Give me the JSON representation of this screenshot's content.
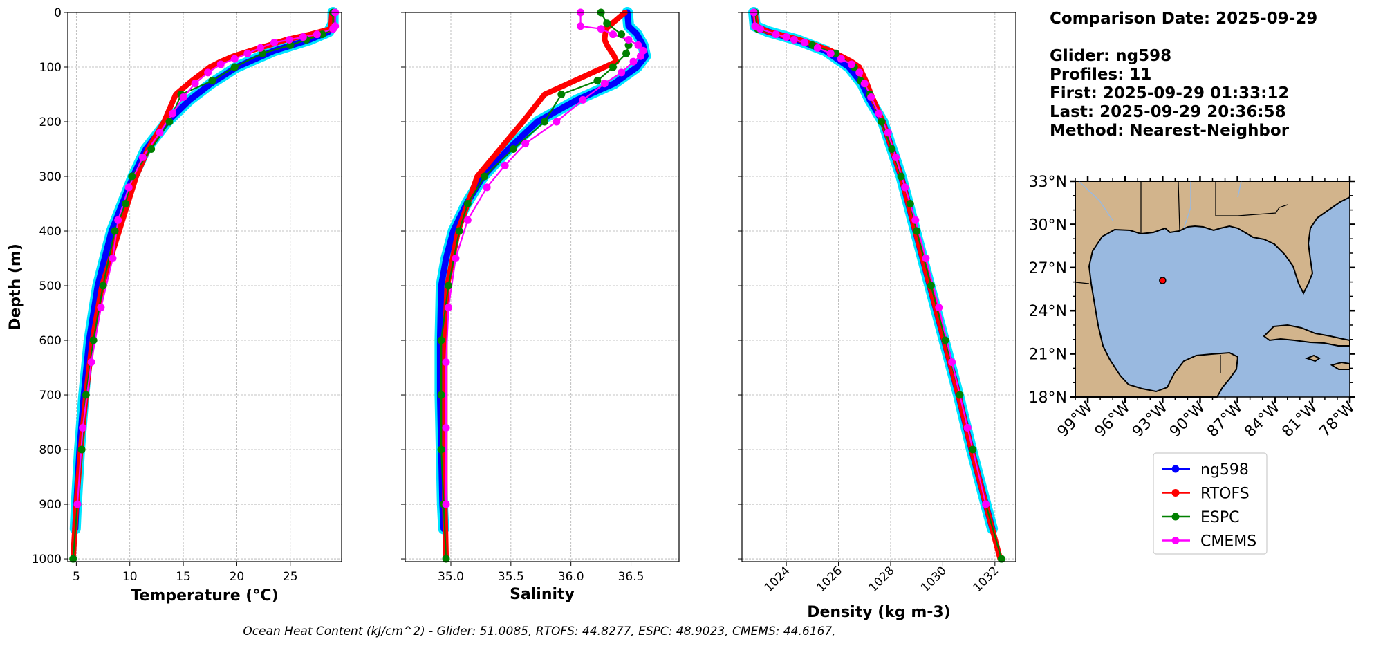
{
  "info": {
    "comparison_date": "Comparison Date: 2025-09-29",
    "glider": "Glider: ng598",
    "profiles": "Profiles: 11",
    "first": "First: 2025-09-29 01:33:12",
    "last": "Last: 2025-09-29 20:36:58",
    "method": "Method: Nearest-Neighbor"
  },
  "footer": "Ocean Heat Content (kJ/cm^2) - Glider: 51.0085,  RTOFS: 44.8277,  ESPC: 48.9023,  CMEMS: 44.6167,",
  "colors": {
    "ng598": "#0000ff",
    "ng598_band": "#00e5ff",
    "RTOFS": "#ff0000",
    "ESPC": "#008000",
    "CMEMS": "#ff00ff",
    "land": "#d2b48c",
    "ocean": "#99b9e0"
  },
  "chart_data": [
    {
      "type": "line",
      "xlabel": "Temperature ($^o C$)",
      "xlabel_html": "Temperature (°C)",
      "ylabel": "Depth (m)",
      "xlim": [
        4.2,
        29.8
      ],
      "ylim": [
        1005,
        0
      ],
      "xticks": [
        5,
        10,
        15,
        20,
        25
      ],
      "yticks": [
        0,
        100,
        200,
        300,
        400,
        500,
        600,
        700,
        800,
        900,
        1000
      ],
      "grid": true,
      "series": [
        {
          "name": "ng598",
          "depth": [
            0,
            20,
            35,
            50,
            70,
            100,
            130,
            160,
            200,
            250,
            300,
            400,
            500,
            600,
            700,
            800,
            900,
            945
          ],
          "values": [
            29.0,
            29.0,
            28.6,
            26.8,
            23.5,
            20.0,
            17.6,
            15.6,
            13.5,
            11.5,
            10.3,
            8.3,
            7.0,
            6.2,
            5.7,
            5.3,
            5.0,
            4.9
          ]
        },
        {
          "name": "RTOFS",
          "depth": [
            0,
            30,
            40,
            50,
            60,
            70,
            80,
            90,
            100,
            125,
            150,
            200,
            250,
            300,
            350,
            400,
            500,
            600,
            700,
            800,
            900,
            1000
          ],
          "values": [
            28.9,
            28.8,
            26.9,
            24.6,
            23.0,
            21.3,
            19.7,
            18.5,
            17.5,
            15.8,
            14.3,
            13.2,
            11.7,
            10.6,
            9.8,
            9.0,
            7.4,
            6.5,
            5.9,
            5.4,
            5.0,
            4.7
          ]
        },
        {
          "name": "ESPC",
          "depth": [
            0,
            30,
            40,
            50,
            60,
            75,
            100,
            125,
            150,
            200,
            250,
            300,
            350,
            400,
            500,
            600,
            700,
            800,
            900,
            1000
          ],
          "values": [
            29.0,
            29.0,
            28.0,
            26.5,
            25.0,
            22.4,
            19.8,
            17.7,
            14.8,
            13.7,
            12.0,
            10.2,
            9.6,
            8.6,
            7.5,
            6.6,
            5.9,
            5.5,
            5.1,
            4.7
          ]
        },
        {
          "name": "CMEMS",
          "depth": [
            0,
            25,
            30,
            40,
            45,
            50,
            55,
            65,
            75,
            85,
            95,
            110,
            130,
            155,
            185,
            220,
            265,
            320,
            380,
            450,
            540,
            640,
            760,
            900
          ],
          "values": [
            29.2,
            29.2,
            29.0,
            27.5,
            26.2,
            24.9,
            23.5,
            22.2,
            21.0,
            19.8,
            18.5,
            17.3,
            16.1,
            15.0,
            14.0,
            12.8,
            11.2,
            9.9,
            8.9,
            8.4,
            7.3,
            6.4,
            5.6,
            5.1
          ]
        }
      ]
    },
    {
      "type": "line",
      "xlabel": "Salinity",
      "xlim": [
        34.62,
        36.9
      ],
      "ylim": [
        1005,
        0
      ],
      "xticks": [
        35.0,
        35.5,
        36.0,
        36.5
      ],
      "xticklabels": [
        "35.0",
        "35.5",
        "36.0",
        "36.5"
      ],
      "yticks": [
        0,
        100,
        200,
        300,
        400,
        500,
        600,
        700,
        800,
        900,
        1000
      ],
      "grid": true,
      "series": [
        {
          "name": "ng598",
          "depth": [
            0,
            25,
            40,
            60,
            80,
            100,
            130,
            160,
            200,
            250,
            300,
            350,
            400,
            450,
            500,
            600,
            700,
            800,
            900,
            945
          ],
          "values": [
            36.47,
            36.48,
            36.55,
            36.6,
            36.62,
            36.55,
            36.36,
            36.05,
            35.72,
            35.48,
            35.27,
            35.13,
            35.02,
            34.96,
            34.92,
            34.91,
            34.91,
            34.92,
            34.93,
            34.94
          ]
        },
        {
          "name": "RTOFS",
          "depth": [
            0,
            30,
            50,
            60,
            80,
            90,
            100,
            150,
            200,
            300,
            400,
            500,
            600,
            700,
            800,
            900,
            1000
          ],
          "values": [
            36.45,
            36.29,
            36.28,
            36.3,
            36.36,
            36.38,
            36.28,
            35.78,
            35.6,
            35.22,
            35.06,
            34.97,
            34.95,
            34.95,
            34.95,
            34.95,
            34.96
          ]
        },
        {
          "name": "ESPC",
          "depth": [
            0,
            20,
            40,
            60,
            75,
            100,
            125,
            150,
            200,
            250,
            300,
            350,
            400,
            500,
            600,
            700,
            800,
            900,
            1000
          ],
          "values": [
            36.25,
            36.3,
            36.42,
            36.48,
            36.46,
            36.35,
            36.22,
            35.92,
            35.78,
            35.52,
            35.28,
            35.14,
            35.07,
            34.98,
            34.92,
            34.92,
            34.92,
            34.94,
            34.96
          ]
        },
        {
          "name": "CMEMS",
          "depth": [
            0,
            25,
            30,
            40,
            50,
            60,
            70,
            80,
            90,
            110,
            130,
            160,
            200,
            240,
            280,
            320,
            380,
            450,
            540,
            640,
            760,
            900
          ],
          "values": [
            36.08,
            36.08,
            36.25,
            36.35,
            36.48,
            36.56,
            36.6,
            36.58,
            36.52,
            36.42,
            36.28,
            36.1,
            35.88,
            35.62,
            35.45,
            35.3,
            35.14,
            35.04,
            34.98,
            34.96,
            34.96,
            34.96
          ]
        }
      ]
    },
    {
      "type": "line",
      "xlabel": "Density (kg m-3)",
      "xlim": [
        1022.3,
        1032.8
      ],
      "ylim": [
        1005,
        0
      ],
      "xticks": [
        1024,
        1026,
        1028,
        1030,
        1032
      ],
      "yticks": [
        0,
        100,
        200,
        300,
        400,
        500,
        600,
        700,
        800,
        900,
        1000
      ],
      "grid": true,
      "series": [
        {
          "name": "ng598",
          "depth": [
            0,
            25,
            35,
            50,
            70,
            100,
            130,
            160,
            200,
            300,
            400,
            500,
            600,
            700,
            800,
            900,
            945
          ],
          "values": [
            1022.75,
            1022.8,
            1023.3,
            1024.4,
            1025.5,
            1026.4,
            1026.9,
            1027.2,
            1027.7,
            1028.4,
            1028.95,
            1029.5,
            1030.05,
            1030.6,
            1031.1,
            1031.65,
            1031.9
          ]
        },
        {
          "name": "RTOFS",
          "depth": [
            0,
            25,
            35,
            50,
            70,
            90,
            100,
            125,
            150,
            200,
            300,
            400,
            500,
            600,
            700,
            800,
            900,
            1000
          ],
          "values": [
            1022.8,
            1022.85,
            1023.3,
            1024.5,
            1025.7,
            1026.5,
            1026.8,
            1027.05,
            1027.25,
            1027.7,
            1028.4,
            1028.95,
            1029.5,
            1030.05,
            1030.6,
            1031.1,
            1031.65,
            1032.2
          ]
        },
        {
          "name": "ESPC",
          "depth": [
            0,
            30,
            50,
            60,
            75,
            100,
            125,
            150,
            200,
            250,
            300,
            350,
            400,
            500,
            600,
            700,
            800,
            900,
            1000
          ],
          "values": [
            1022.8,
            1022.9,
            1024.3,
            1025.0,
            1025.9,
            1026.6,
            1026.85,
            1027.2,
            1027.65,
            1028.05,
            1028.4,
            1028.75,
            1029.0,
            1029.55,
            1030.1,
            1030.65,
            1031.15,
            1031.65,
            1032.25
          ]
        },
        {
          "name": "CMEMS",
          "depth": [
            0,
            25,
            30,
            40,
            45,
            50,
            55,
            65,
            75,
            85,
            95,
            110,
            130,
            155,
            185,
            220,
            265,
            320,
            380,
            450,
            540,
            640,
            760,
            900
          ],
          "values": [
            1022.75,
            1022.8,
            1023.0,
            1023.6,
            1024.0,
            1024.3,
            1024.7,
            1025.2,
            1025.7,
            1026.1,
            1026.5,
            1026.8,
            1027.0,
            1027.25,
            1027.55,
            1027.9,
            1028.2,
            1028.55,
            1028.95,
            1029.35,
            1029.85,
            1030.35,
            1030.95,
            1031.65
          ]
        }
      ]
    },
    {
      "type": "map",
      "lon_range": [
        -100,
        -78
      ],
      "lat_range": [
        18,
        33
      ],
      "xticks": [
        -99,
        -96,
        -93,
        -90,
        -87,
        -84,
        -81,
        -78
      ],
      "xticklabels": [
        "99°W",
        "96°W",
        "93°W",
        "90°W",
        "87°W",
        "84°W",
        "81°W",
        "78°W"
      ],
      "yticks": [
        33,
        30,
        27,
        24,
        21,
        18
      ],
      "yticklabels": [
        "33°N",
        "30°N",
        "27°N",
        "24°N",
        "21°N",
        "18°N"
      ],
      "glider_position": {
        "lon": -93.0,
        "lat": 26.1
      },
      "legend": [
        "ng598",
        "RTOFS",
        "ESPC",
        "CMEMS"
      ]
    }
  ]
}
